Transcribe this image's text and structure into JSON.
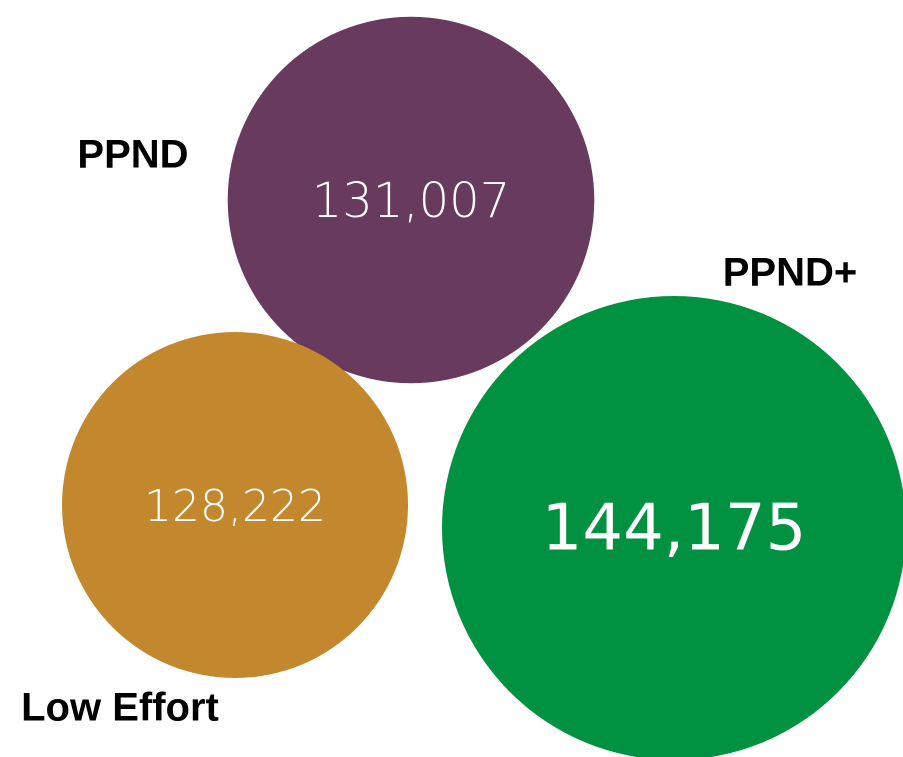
{
  "chart_data": {
    "type": "bubble",
    "categories": [
      "PPND",
      "Low Effort",
      "PPND+"
    ],
    "values": [
      131007,
      128222,
      144175
    ],
    "value_labels": [
      "131,007",
      "128,222",
      "144,175"
    ],
    "colors": [
      "#683a5e",
      "#c3882e",
      "#009141"
    ]
  }
}
